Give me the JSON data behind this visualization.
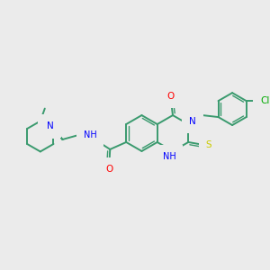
{
  "background_color": "#ebebeb",
  "bond_color": "#3a9a6e",
  "atom_colors": {
    "N": "#0000ff",
    "O": "#ff0000",
    "S": "#cccc00",
    "Cl": "#00aa00",
    "NH": "#0000ff",
    "H": "#0000ff"
  },
  "figsize": [
    3.0,
    3.0
  ],
  "dpi": 100,
  "lw": 1.4,
  "lw2": 1.0
}
